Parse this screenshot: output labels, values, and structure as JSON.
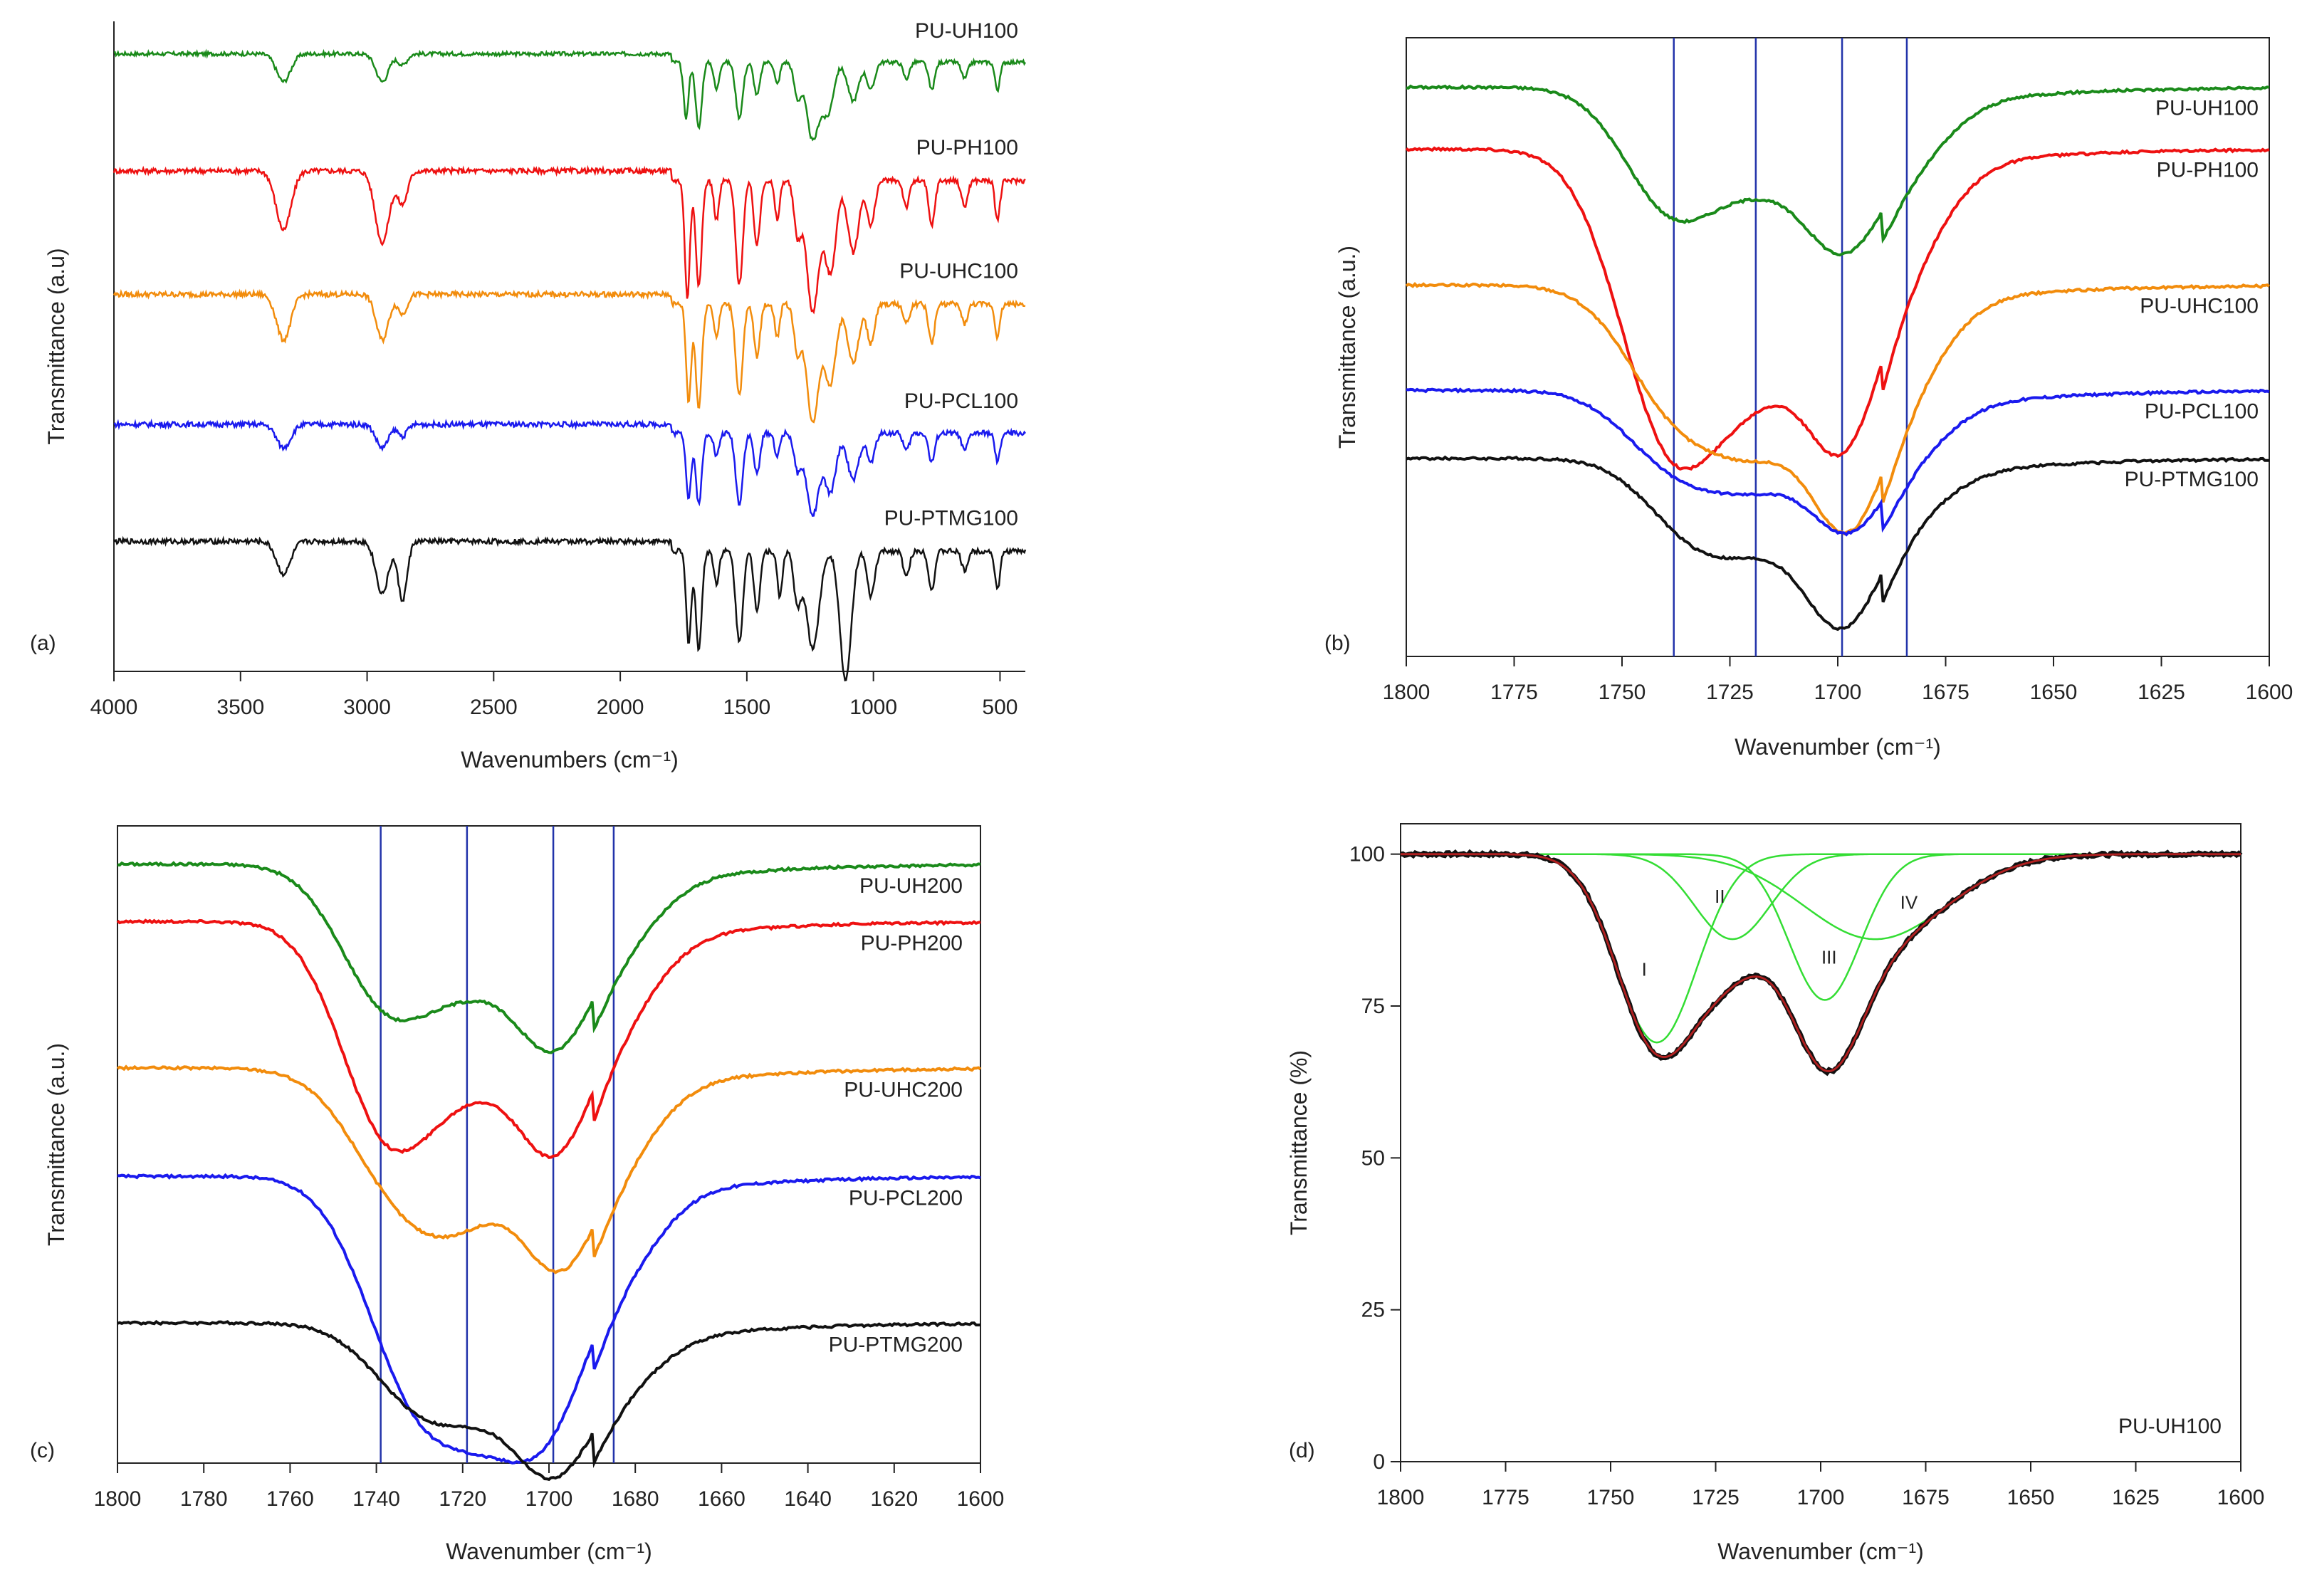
{
  "chart_data": [
    {
      "panel_label": "(a)",
      "type": "line",
      "xlabel": "Wavenumbers (cm⁻¹)",
      "ylabel": "Transmittance (a.u)",
      "xlim": [
        4000,
        400
      ],
      "x_reversed": true,
      "x_ticks": [
        4000,
        3500,
        3000,
        2500,
        2000,
        1500,
        1000,
        500
      ],
      "y_ticks": [],
      "box": "left-bottom",
      "series": [
        {
          "name": "PU-UH100",
          "color": "#1a8a1a",
          "offset": 0.95,
          "band_scale": 0.85,
          "noise": 0.003,
          "peaks": [
            [
              3330,
              0.05,
              28
            ],
            [
              2940,
              0.05,
              25
            ],
            [
              2860,
              0.02,
              18
            ],
            [
              1740,
              0.1,
              10
            ],
            [
              1690,
              0.12,
              12
            ],
            [
              1620,
              0.05,
              10
            ],
            [
              1530,
              0.1,
              14
            ],
            [
              1460,
              0.06,
              12
            ],
            [
              1380,
              0.04,
              10
            ],
            [
              1300,
              0.06,
              14
            ],
            [
              1240,
              0.14,
              25
            ],
            [
              1180,
              0.09,
              22
            ],
            [
              1080,
              0.07,
              22
            ],
            [
              1010,
              0.05,
              15
            ],
            [
              870,
              0.03,
              12
            ],
            [
              770,
              0.05,
              12
            ],
            [
              640,
              0.03,
              12
            ],
            [
              510,
              0.05,
              10
            ]
          ]
        },
        {
          "name": "PU-PH100",
          "color": "#ee1111",
          "offset": 0.77,
          "band_scale": 1.0,
          "noise": 0.004,
          "peaks": [
            [
              3330,
              0.09,
              30
            ],
            [
              2940,
              0.11,
              28
            ],
            [
              2860,
              0.05,
              20
            ],
            [
              1735,
              0.18,
              10
            ],
            [
              1690,
              0.16,
              12
            ],
            [
              1620,
              0.06,
              10
            ],
            [
              1530,
              0.16,
              14
            ],
            [
              1460,
              0.1,
              12
            ],
            [
              1380,
              0.06,
              10
            ],
            [
              1300,
              0.08,
              14
            ],
            [
              1240,
              0.2,
              25
            ],
            [
              1170,
              0.14,
              22
            ],
            [
              1080,
              0.11,
              22
            ],
            [
              1010,
              0.07,
              15
            ],
            [
              870,
              0.04,
              12
            ],
            [
              770,
              0.07,
              12
            ],
            [
              640,
              0.04,
              12
            ],
            [
              510,
              0.06,
              10
            ]
          ]
        },
        {
          "name": "PU-UHC100",
          "color": "#f28c0c",
          "offset": 0.58,
          "band_scale": 1.0,
          "noise": 0.004,
          "peaks": [
            [
              3330,
              0.07,
              28
            ],
            [
              2940,
              0.07,
              25
            ],
            [
              2860,
              0.03,
              18
            ],
            [
              1730,
              0.15,
              10
            ],
            [
              1690,
              0.16,
              12
            ],
            [
              1620,
              0.05,
              10
            ],
            [
              1530,
              0.14,
              14
            ],
            [
              1460,
              0.08,
              12
            ],
            [
              1380,
              0.05,
              10
            ],
            [
              1300,
              0.07,
              14
            ],
            [
              1240,
              0.18,
              25
            ],
            [
              1170,
              0.12,
              22
            ],
            [
              1080,
              0.09,
              22
            ],
            [
              1010,
              0.06,
              15
            ],
            [
              870,
              0.03,
              12
            ],
            [
              770,
              0.06,
              12
            ],
            [
              640,
              0.03,
              12
            ],
            [
              510,
              0.05,
              10
            ]
          ]
        },
        {
          "name": "PU-PCL100",
          "color": "#1a1aee",
          "offset": 0.38,
          "band_scale": 0.9,
          "noise": 0.004,
          "peaks": [
            [
              3330,
              0.04,
              28
            ],
            [
              2940,
              0.04,
              25
            ],
            [
              2860,
              0.02,
              18
            ],
            [
              1730,
              0.11,
              10
            ],
            [
              1690,
              0.12,
              12
            ],
            [
              1620,
              0.04,
              10
            ],
            [
              1530,
              0.12,
              14
            ],
            [
              1460,
              0.07,
              12
            ],
            [
              1380,
              0.04,
              10
            ],
            [
              1300,
              0.06,
              14
            ],
            [
              1240,
              0.14,
              25
            ],
            [
              1170,
              0.1,
              22
            ],
            [
              1080,
              0.08,
              22
            ],
            [
              1010,
              0.05,
              15
            ],
            [
              870,
              0.03,
              12
            ],
            [
              770,
              0.05,
              12
            ],
            [
              640,
              0.03,
              12
            ],
            [
              510,
              0.05,
              10
            ]
          ]
        },
        {
          "name": "PU-PTMG100",
          "color": "#111111",
          "offset": 0.2,
          "band_scale": 1.0,
          "noise": 0.004,
          "peaks": [
            [
              3330,
              0.05,
              28
            ],
            [
              2940,
              0.08,
              25
            ],
            [
              2860,
              0.09,
              18
            ],
            [
              1730,
              0.14,
              10
            ],
            [
              1690,
              0.15,
              12
            ],
            [
              1620,
              0.05,
              10
            ],
            [
              1530,
              0.14,
              14
            ],
            [
              1460,
              0.09,
              12
            ],
            [
              1370,
              0.07,
              10
            ],
            [
              1300,
              0.08,
              14
            ],
            [
              1240,
              0.15,
              25
            ],
            [
              1110,
              0.2,
              22
            ],
            [
              1010,
              0.07,
              15
            ],
            [
              870,
              0.04,
              12
            ],
            [
              770,
              0.06,
              12
            ],
            [
              640,
              0.03,
              12
            ],
            [
              510,
              0.06,
              10
            ]
          ]
        }
      ]
    },
    {
      "panel_label": "(b)",
      "type": "line",
      "xlabel": "Wavenumber (cm⁻¹)",
      "ylabel": "Transmittance (a.u.)",
      "xlim": [
        1800,
        1600
      ],
      "x_reversed": true,
      "x_ticks": [
        1800,
        1775,
        1750,
        1725,
        1700,
        1675,
        1650,
        1625,
        1600
      ],
      "y_ticks": [],
      "box": "full",
      "vlines": [
        1738,
        1719,
        1699,
        1684
      ],
      "series": [
        {
          "name": "PU-UH100",
          "color": "#1a8a1a",
          "baseline": 0.92,
          "tail": 0.88,
          "noise": 0.002,
          "peaks": [
            [
              1738,
              0.2,
              11
            ],
            [
              1717,
              0.12,
              10
            ],
            [
              1699,
              0.22,
              9
            ],
            [
              1684,
              0.08,
              10
            ]
          ]
        },
        {
          "name": "PU-PH100",
          "color": "#ee1111",
          "baseline": 0.82,
          "tail": 0.83,
          "noise": 0.002,
          "peaks": [
            [
              1738,
              0.48,
              12
            ],
            [
              1717,
              0.26,
              10
            ],
            [
              1699,
              0.4,
              9
            ],
            [
              1684,
              0.12,
              10
            ]
          ]
        },
        {
          "name": "PU-UHC100",
          "color": "#f28c0c",
          "baseline": 0.6,
          "tail": 0.6,
          "noise": 0.002,
          "peaks": [
            [
              1736,
              0.21,
              12
            ],
            [
              1717,
              0.19,
              10
            ],
            [
              1698,
              0.33,
              9
            ],
            [
              1684,
              0.1,
              10
            ]
          ]
        },
        {
          "name": "PU-PCL100",
          "color": "#1a1aee",
          "baseline": 0.43,
          "tail": 0.43,
          "noise": 0.002,
          "peaks": [
            [
              1736,
              0.13,
              12
            ],
            [
              1717,
              0.11,
              10
            ],
            [
              1698,
              0.19,
              9
            ],
            [
              1684,
              0.06,
              10
            ]
          ]
        },
        {
          "name": "PU-PTMG100",
          "color": "#111111",
          "baseline": 0.32,
          "tail": 0.33,
          "noise": 0.002,
          "peaks": [
            [
              1733,
              0.12,
              11
            ],
            [
              1717,
              0.09,
              10
            ],
            [
              1699,
              0.24,
              9
            ],
            [
              1684,
              0.05,
              10
            ]
          ]
        }
      ]
    },
    {
      "panel_label": "(c)",
      "type": "line",
      "xlabel": "Wavenumber (cm⁻¹)",
      "ylabel": "Transmittance (a.u.)",
      "xlim": [
        1800,
        1600
      ],
      "x_reversed": true,
      "x_ticks": [
        1800,
        1780,
        1760,
        1740,
        1720,
        1700,
        1680,
        1660,
        1640,
        1620,
        1600
      ],
      "y_ticks": [],
      "box": "full",
      "vlines": [
        1739,
        1719,
        1699,
        1685
      ],
      "series": [
        {
          "name": "PU-UH200",
          "color": "#1a8a1a",
          "baseline": 0.94,
          "tail": 0.94,
          "noise": 0.002,
          "peaks": [
            [
              1737,
              0.22,
              11
            ],
            [
              1717,
              0.14,
              10
            ],
            [
              1699,
              0.24,
              9
            ],
            [
              1684,
              0.08,
              10
            ]
          ]
        },
        {
          "name": "PU-PH200",
          "color": "#ee1111",
          "baseline": 0.85,
          "tail": 0.85,
          "noise": 0.002,
          "peaks": [
            [
              1737,
              0.33,
              11
            ],
            [
              1717,
              0.18,
              10
            ],
            [
              1699,
              0.3,
              9
            ],
            [
              1684,
              0.1,
              10
            ]
          ]
        },
        {
          "name": "PU-UHC200",
          "color": "#f28c0c",
          "baseline": 0.62,
          "tail": 0.62,
          "noise": 0.002,
          "peaks": [
            [
              1733,
              0.2,
              12
            ],
            [
              1717,
              0.14,
              10
            ],
            [
              1698,
              0.26,
              9
            ],
            [
              1684,
              0.09,
              10
            ]
          ]
        },
        {
          "name": "PU-PCL200",
          "color": "#1a1aee",
          "baseline": 0.45,
          "tail": 0.45,
          "noise": 0.002,
          "peaks": [
            [
              1730,
              0.34,
              12
            ],
            [
              1712,
              0.24,
              10
            ],
            [
              1699,
              0.26,
              9
            ],
            [
              1684,
              0.1,
              10
            ]
          ]
        },
        {
          "name": "PU-PTMG200",
          "color": "#111111",
          "baseline": 0.22,
          "tail": 0.22,
          "noise": 0.002,
          "peaks": [
            [
              1730,
              0.12,
              11
            ],
            [
              1715,
              0.08,
              10
            ],
            [
              1699,
              0.2,
              9
            ],
            [
              1684,
              0.06,
              10
            ]
          ]
        }
      ]
    },
    {
      "panel_label": "(d)",
      "type": "line",
      "xlabel": "Wavenumber (cm⁻¹)",
      "ylabel": "Transmittance (%)",
      "xlim": [
        1800,
        1600
      ],
      "x_reversed": true,
      "ylim": [
        0,
        105
      ],
      "x_ticks": [
        1800,
        1775,
        1750,
        1725,
        1700,
        1675,
        1650,
        1625,
        1600
      ],
      "y_ticks": [
        0,
        25,
        50,
        75,
        100
      ],
      "box": "full",
      "inset_label": "PU-UH100",
      "series": [
        {
          "name": "experimental",
          "color": "#111111",
          "stroke": 7,
          "noise": 0.25,
          "sum_of": [
            0,
            1,
            2,
            3
          ],
          "baseline": 100
        },
        {
          "name": "fit",
          "color": "#b02020",
          "stroke": 3,
          "noise": 0,
          "sum_of": [
            0,
            1,
            2,
            3
          ],
          "baseline": 100
        }
      ],
      "components": [
        {
          "label": "I",
          "center": 1739,
          "depth": 31,
          "width": 9.5,
          "color": "#33dd33"
        },
        {
          "label": "II",
          "center": 1721,
          "depth": 14,
          "width": 9,
          "color": "#33dd33"
        },
        {
          "label": "III",
          "center": 1699,
          "depth": 24,
          "width": 8.5,
          "color": "#33dd33"
        },
        {
          "label": "IV",
          "center": 1687,
          "depth": 14,
          "width": 17,
          "color": "#33dd33"
        }
      ],
      "component_labels": [
        {
          "text": "I",
          "x": 1742,
          "y": 80
        },
        {
          "text": "II",
          "x": 1724,
          "y": 92
        },
        {
          "text": "III",
          "x": 1698,
          "y": 82
        },
        {
          "text": "IV",
          "x": 1679,
          "y": 91
        }
      ]
    }
  ]
}
